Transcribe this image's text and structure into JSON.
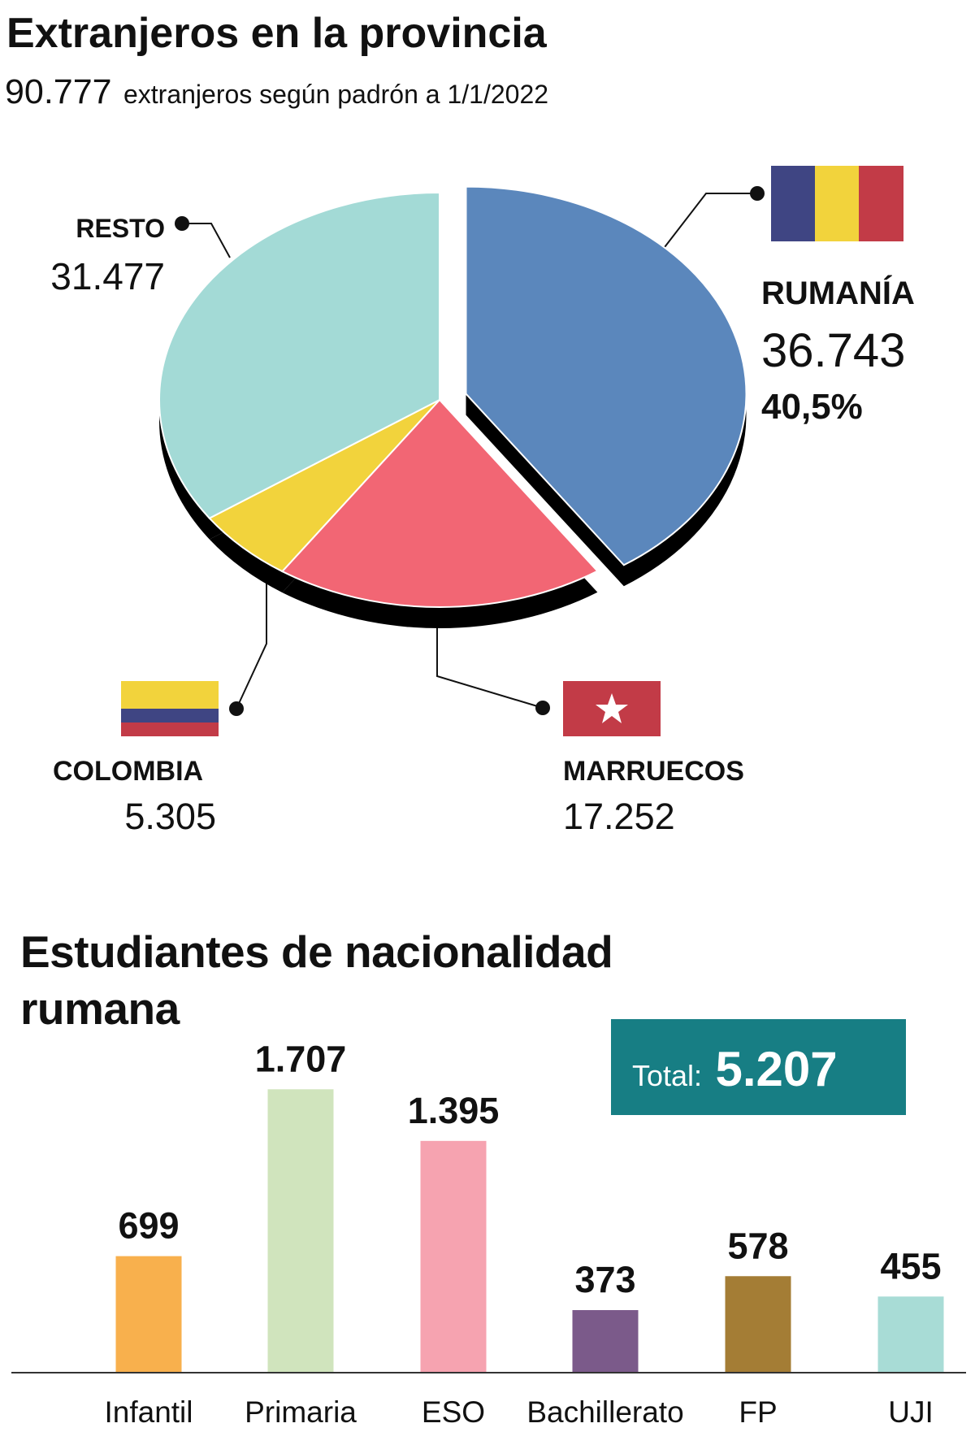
{
  "chart_data": [
    {
      "type": "pie",
      "title": "Extranjeros en la provincia",
      "total": {
        "value": 90777,
        "label": "90.777"
      },
      "subtitle": "extranjeros según padrón a 1/1/2022",
      "categories": [
        "RUMANÍA",
        "MARRUECOS",
        "COLOMBIA",
        "RESTO"
      ],
      "values": [
        36743,
        17252,
        5305,
        31477
      ],
      "value_labels": [
        "36.743",
        "17.252",
        "5.305",
        "31.477"
      ],
      "colors": [
        "#5b87bc",
        "#f26674",
        "#f2d33c",
        "#a3dad6"
      ],
      "share": {
        "value": 40.5,
        "label": "40,5%"
      }
    },
    {
      "type": "bar",
      "title": "Estudiantes de nacionalidad rumana",
      "total_label": "Total:",
      "total": {
        "value": 5207,
        "label": "5.207"
      },
      "categories": [
        "Infantil",
        "Primaria",
        "ESO",
        "Bachillerato",
        "FP",
        "UJI"
      ],
      "values": [
        699,
        1707,
        1395,
        373,
        578,
        455
      ],
      "value_labels": [
        "699",
        "1.707",
        "1.395",
        "373",
        "578",
        "455"
      ],
      "colors": [
        "#f8b04d",
        "#d0e4bd",
        "#f6a3b0",
        "#7b5a8a",
        "#a47d35",
        "#a8dcd6"
      ]
    }
  ]
}
